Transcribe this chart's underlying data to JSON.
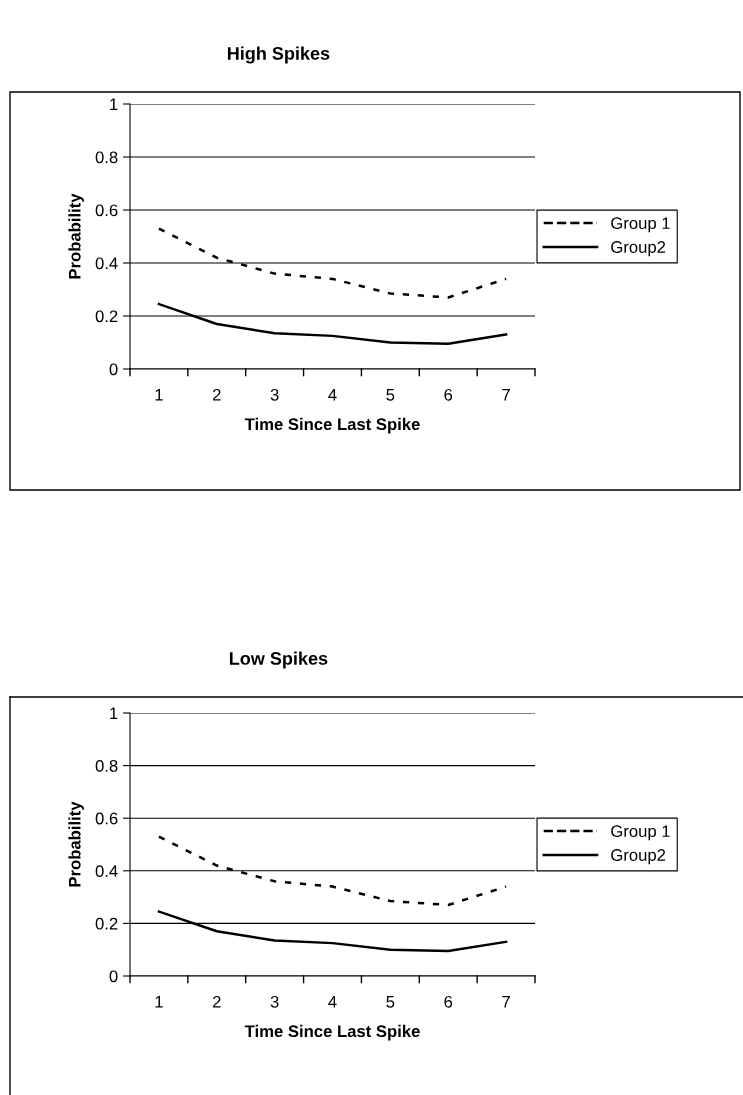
{
  "chart_data": [
    {
      "type": "line",
      "title": "High Spikes",
      "xlabel": "Time Since Last Spike",
      "ylabel": "Probability",
      "categories": [
        "1",
        "2",
        "3",
        "4",
        "5",
        "6",
        "7"
      ],
      "series": [
        {
          "name": "Group 1",
          "color": "#000000",
          "line_style": "dotted",
          "values": [
            0.53,
            0.42,
            0.36,
            0.34,
            0.285,
            0.27,
            0.34
          ]
        },
        {
          "name": "Group2",
          "color": "#000000",
          "line_style": "solid",
          "values": [
            0.245,
            0.17,
            0.135,
            0.125,
            0.1,
            0.095,
            0.13
          ]
        }
      ],
      "ylim": [
        0,
        1
      ],
      "yticks": [
        0,
        0.2,
        0.4,
        0.6,
        0.8,
        1
      ],
      "grid": "y",
      "legend": "right",
      "marker": "none"
    },
    {
      "type": "line",
      "title": "Low Spikes",
      "xlabel": "Time Since Last Spike",
      "ylabel": "Probability",
      "categories": [
        "1",
        "2",
        "3",
        "4",
        "5",
        "6",
        "7"
      ],
      "series": [
        {
          "name": "Group 1",
          "color": "#000000",
          "line_style": "dotted",
          "values": [
            0.53,
            0.42,
            0.36,
            0.34,
            0.285,
            0.27,
            0.34
          ]
        },
        {
          "name": "Group2",
          "color": "#000000",
          "line_style": "solid",
          "values": [
            0.245,
            0.17,
            0.135,
            0.125,
            0.1,
            0.095,
            0.13
          ]
        }
      ],
      "ylim": [
        0,
        1
      ],
      "yticks": [
        0,
        0.2,
        0.4,
        0.6,
        0.8,
        1
      ],
      "grid": "y",
      "legend": "right",
      "marker": "none"
    }
  ]
}
